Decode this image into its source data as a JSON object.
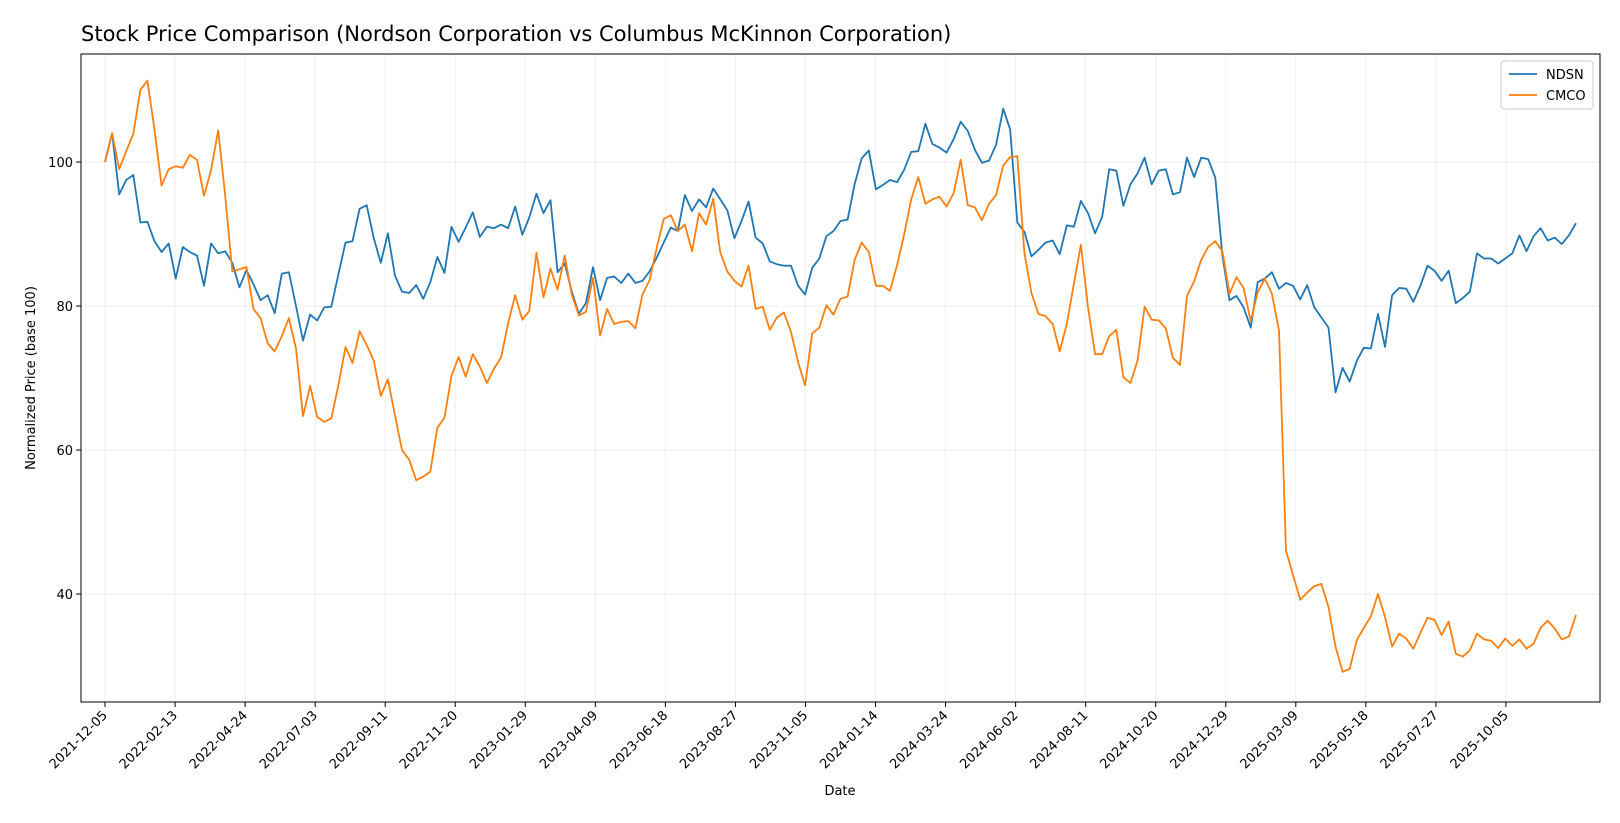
{
  "chart_data": {
    "type": "line",
    "title": "Stock Price Comparison (Nordson Corporation vs Columbus McKinnon Corporation)",
    "xlabel": "Date",
    "ylabel": "Normalized Price (base 100)",
    "x_start": "2021-12-05",
    "x_end": "2025-12-14",
    "ylim": [
      25,
      115
    ],
    "yticks": [
      40,
      60,
      80,
      100
    ],
    "xticks": [
      "2021-12-05",
      "2022-02-13",
      "2022-04-24",
      "2022-07-03",
      "2022-09-11",
      "2022-11-20",
      "2023-01-29",
      "2023-04-09",
      "2023-06-18",
      "2023-08-27",
      "2023-11-05",
      "2024-01-14",
      "2024-03-24",
      "2024-06-02",
      "2024-08-11",
      "2024-10-20",
      "2024-12-29",
      "2025-03-09",
      "2025-05-18",
      "2025-07-27",
      "2025-10-05"
    ],
    "grid": true,
    "legend_position": "top-right",
    "series": [
      {
        "name": "NDSN",
        "color": "#1f77b4",
        "values": [
          100,
          104,
          95.5,
          97.5,
          98.2,
          91.6,
          91.7,
          89,
          87.5,
          88.7,
          83.8,
          88.2,
          87.5,
          87,
          82.8,
          88.7,
          87.3,
          87.6,
          86,
          82.6,
          85,
          83,
          80.8,
          81.5,
          79,
          84.5,
          84.7,
          80,
          75.2,
          78.8,
          78,
          79.8,
          79.9,
          84.4,
          88.8,
          89,
          93.5,
          94,
          89.4,
          86,
          90.1,
          84.2,
          82,
          81.8,
          82.9,
          81,
          83.3,
          86.8,
          84.6,
          91,
          88.9,
          90.9,
          93,
          89.6,
          91,
          90.8,
          91.3,
          90.8,
          93.8,
          89.9,
          92.3,
          95.6,
          92.9,
          94.7,
          84.7,
          85.9,
          82,
          78.9,
          80.4,
          85.4,
          80.8,
          83.9,
          84.1,
          83.2,
          84.5,
          83.2,
          83.5,
          84.8,
          86.7,
          88.8,
          90.9,
          90.4,
          95.4,
          93.2,
          94.8,
          93.7,
          96.3,
          94.8,
          93.3,
          89.4,
          91.8,
          94.5,
          89.5,
          88.7,
          86.2,
          85.8,
          85.6,
          85.6,
          82.8,
          81.6,
          85.3,
          86.6,
          89.7,
          90.4,
          91.8,
          92,
          96.9,
          100.5,
          101.6,
          96.2,
          96.8,
          97.5,
          97.2,
          98.9,
          101.4,
          101.5,
          105.3,
          102.5,
          102,
          101.3,
          103.2,
          105.6,
          104.3,
          101.7,
          99.9,
          100.2,
          102.4,
          107.4,
          104.5,
          91.6,
          90.3,
          86.9,
          87.8,
          88.8,
          89.1,
          87.2,
          91.2,
          91,
          94.6,
          92.9,
          90.1,
          92.4,
          99,
          98.8,
          93.9,
          96.9,
          98.4,
          100.6,
          96.9,
          98.8,
          99,
          95.5,
          95.8,
          100.6,
          97.9,
          100.6,
          100.4,
          97.8,
          87,
          80.8,
          81.4,
          79.8,
          77,
          83.3,
          83.8,
          84.7,
          82.4,
          83.2,
          82.8,
          80.9,
          82.9,
          79.8,
          78.4,
          77,
          68,
          71.4,
          69.5,
          72.4,
          74.2,
          74.1,
          78.9,
          74.3,
          81.5,
          82.5,
          82.4,
          80.6,
          82.8,
          85.6,
          84.9,
          83.5,
          84.9,
          80.4,
          81.1,
          82,
          87.3,
          86.6,
          86.6,
          85.9,
          86.6,
          87.3,
          89.8,
          87.6,
          89.7,
          90.8,
          89.1,
          89.5,
          88.6,
          89.8,
          91.5
        ]
      },
      {
        "name": "CMCO",
        "color": "#ff7f0e",
        "values": [
          100,
          104,
          99,
          101.5,
          103.9,
          110,
          111.3,
          104.5,
          96.7,
          99,
          99.4,
          99.2,
          101,
          100.3,
          95.3,
          98.9,
          104.4,
          95.3,
          84.8,
          85.1,
          85.4,
          79.6,
          78.3,
          74.8,
          73.7,
          75.8,
          78.3,
          74.1,
          64.7,
          68.9,
          64.6,
          63.9,
          64.4,
          69,
          74.3,
          72.1,
          76.5,
          74.6,
          72.4,
          67.5,
          69.8,
          64.8,
          60,
          58.7,
          55.8,
          56.3,
          57,
          63.1,
          64.5,
          70.3,
          72.9,
          70.2,
          73.3,
          71.6,
          69.3,
          71.3,
          72.8,
          77.6,
          81.5,
          78.1,
          79.3,
          87.4,
          81.2,
          85.2,
          82.3,
          87,
          81.6,
          78.7,
          79.2,
          83.9,
          75.9,
          79.6,
          77.5,
          77.8,
          77.9,
          76.9,
          81.6,
          83.6,
          88,
          92.1,
          92.6,
          90.4,
          91.3,
          87.6,
          92.9,
          91.3,
          94.9,
          87.4,
          84.8,
          83.5,
          82.7,
          85.6,
          79.6,
          79.9,
          76.7,
          78.4,
          79.1,
          76.4,
          72.2,
          69,
          76.2,
          77,
          80.1,
          78.8,
          81,
          81.3,
          86.4,
          88.8,
          87.5,
          82.8,
          82.8,
          82.1,
          85.7,
          89.9,
          94.8,
          97.9,
          94.2,
          94.8,
          95.2,
          93.8,
          95.7,
          100.3,
          94,
          93.7,
          91.9,
          94.2,
          95.4,
          99.5,
          100.7,
          100.8,
          87.4,
          81.8,
          78.9,
          78.6,
          77.5,
          73.7,
          77.5,
          83.1,
          88.5,
          79.8,
          73.3,
          73.3,
          75.8,
          76.7,
          70.1,
          69.3,
          72.4,
          79.9,
          78.1,
          78,
          76.9,
          72.8,
          71.8,
          81.4,
          83.4,
          86.4,
          88.2,
          89,
          87.6,
          81.7,
          84,
          82.5,
          77.9,
          81.9,
          83.8,
          81.7,
          76.6,
          46,
          42.6,
          39.2,
          40.2,
          41.1,
          41.4,
          38.2,
          32.7,
          29.2,
          29.6,
          33.6,
          35.3,
          36.9,
          40,
          36.8,
          32.7,
          34.5,
          33.8,
          32.4,
          34.6,
          36.7,
          36.4,
          34.3,
          36.2,
          31.7,
          31.3,
          32.2,
          34.5,
          33.7,
          33.5,
          32.5,
          33.8,
          32.8,
          33.7,
          32.4,
          33.1,
          35.3,
          36.3,
          35.2,
          33.7,
          34.1,
          37.1
        ]
      }
    ]
  }
}
